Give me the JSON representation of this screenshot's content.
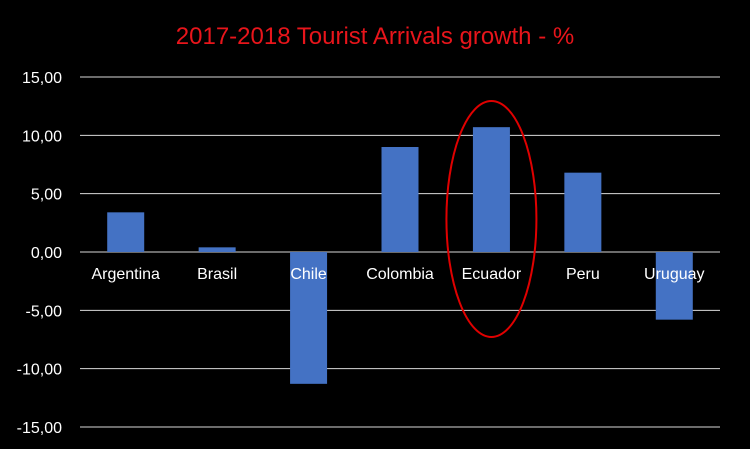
{
  "chart_data": {
    "type": "bar",
    "title": "2017-2018 Tourist Arrivals growth - %",
    "categories": [
      "Argentina",
      "Brasil",
      "Chile",
      "Colombia",
      "Ecuador",
      "Peru",
      "Uruguay"
    ],
    "values": [
      3.4,
      0.4,
      -11.3,
      9.0,
      10.7,
      6.8,
      -5.8
    ],
    "ylim": [
      -15,
      15
    ],
    "y_ticks": [
      "15,00",
      "10,00",
      "5,00",
      "0,00",
      "-5,00",
      "-10,00",
      "-15,00"
    ],
    "grid": true,
    "highlight_category": "Ecuador",
    "colors": {
      "background": "#000000",
      "bar": "#4472C4",
      "title": "#E8151B",
      "text": "#FFFFFF",
      "grid": "#D9D9D9",
      "highlight": "#E00000"
    }
  }
}
